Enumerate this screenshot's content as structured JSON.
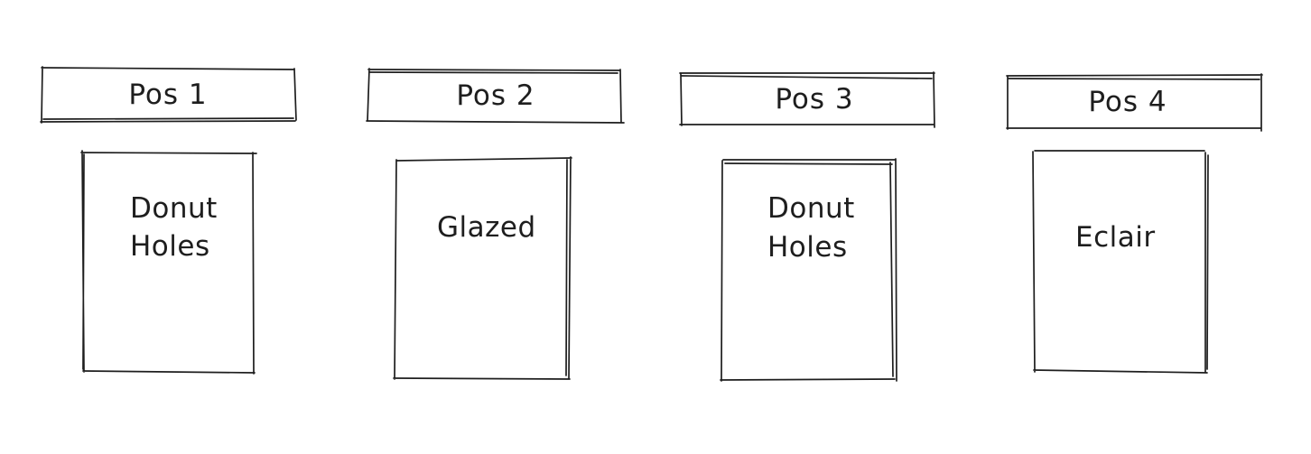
{
  "positions": [
    {
      "label": "Pos 1",
      "item_lines": [
        "Donut",
        "Holes"
      ]
    },
    {
      "label": "Pos 2",
      "item_lines": [
        "Glazed"
      ]
    },
    {
      "label": "Pos 3",
      "item_lines": [
        "Donut",
        "Holes"
      ]
    },
    {
      "label": "Pos 4",
      "item_lines": [
        "Eclair"
      ]
    }
  ],
  "colors": {
    "background": "#ffffff",
    "stroke": "#1e1e1e"
  }
}
